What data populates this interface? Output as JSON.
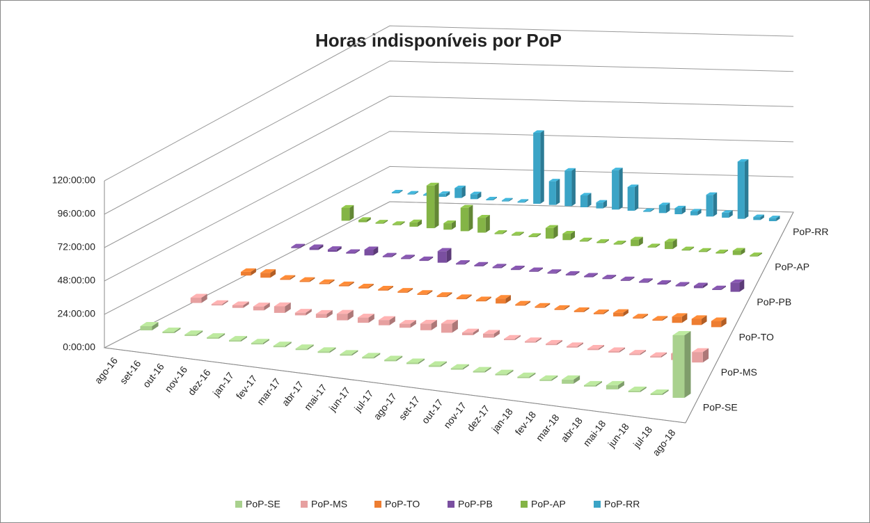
{
  "chart_data": {
    "type": "bar3d",
    "title": "Horas indisponíveis por PoP",
    "categories": [
      "ago-16",
      "set-16",
      "out-16",
      "nov-16",
      "dez-16",
      "jan-17",
      "fev-17",
      "mar-17",
      "abr-17",
      "mai-17",
      "jun-17",
      "jul-17",
      "ago-17",
      "set-17",
      "out-17",
      "nov-17",
      "dez-17",
      "jan-18",
      "fev-18",
      "mar-18",
      "abr-18",
      "mai-18",
      "jun-18",
      "jul-18",
      "ago-18"
    ],
    "series": [
      {
        "name": "PoP-SE",
        "color": "#a9d18e",
        "values": [
          3,
          1,
          1,
          1,
          1,
          1,
          1,
          1,
          1,
          1,
          1,
          1,
          1,
          1,
          1,
          1,
          1,
          1,
          1,
          3,
          1,
          3,
          1,
          1,
          45
        ]
      },
      {
        "name": "PoP-MS",
        "color": "#e6a0a0",
        "values": [
          4,
          1,
          2,
          3,
          5,
          2,
          3,
          5,
          4,
          4,
          3,
          5,
          7,
          2,
          3,
          1,
          1,
          1,
          1,
          1,
          1,
          1,
          1,
          5,
          8
        ]
      },
      {
        "name": "PoP-TO",
        "color": "#ed7d31",
        "values": [
          3,
          4,
          1,
          1,
          1,
          1,
          1,
          1,
          1,
          1,
          1,
          1,
          1,
          4,
          1,
          1,
          1,
          1,
          1,
          3,
          1,
          1,
          5,
          5,
          5
        ]
      },
      {
        "name": "PoP-PB",
        "color": "#7a4fa0",
        "values": [
          1,
          2,
          2,
          1,
          5,
          1,
          1,
          1,
          10,
          1,
          1,
          1,
          1,
          1,
          1,
          1,
          1,
          1,
          1,
          1,
          1,
          1,
          2,
          1,
          8
        ]
      },
      {
        "name": "PoP-AP",
        "color": "#84b446",
        "values": [
          12,
          2,
          1,
          1,
          4,
          40,
          6,
          22,
          14,
          1,
          1,
          1,
          10,
          6,
          1,
          1,
          1,
          6,
          1,
          7,
          1,
          1,
          1,
          4,
          1
        ]
      },
      {
        "name": "PoP-RR",
        "color": "#3ba4c6",
        "values": [
          1,
          1,
          1,
          3,
          10,
          5,
          1,
          1,
          1,
          72,
          24,
          36,
          12,
          6,
          40,
          24,
          1,
          8,
          6,
          4,
          22,
          5,
          58,
          3,
          3
        ]
      }
    ],
    "ylim": [
      0,
      120
    ],
    "yticks": [
      {
        "value": 0,
        "label": "0:00:00"
      },
      {
        "value": 24,
        "label": "24:00:00"
      },
      {
        "value": 48,
        "label": "48:00:00"
      },
      {
        "value": 72,
        "label": "72:00:00"
      },
      {
        "value": 96,
        "label": "96:00:00"
      },
      {
        "value": 120,
        "label": "120:00:00"
      }
    ],
    "grid": true
  }
}
